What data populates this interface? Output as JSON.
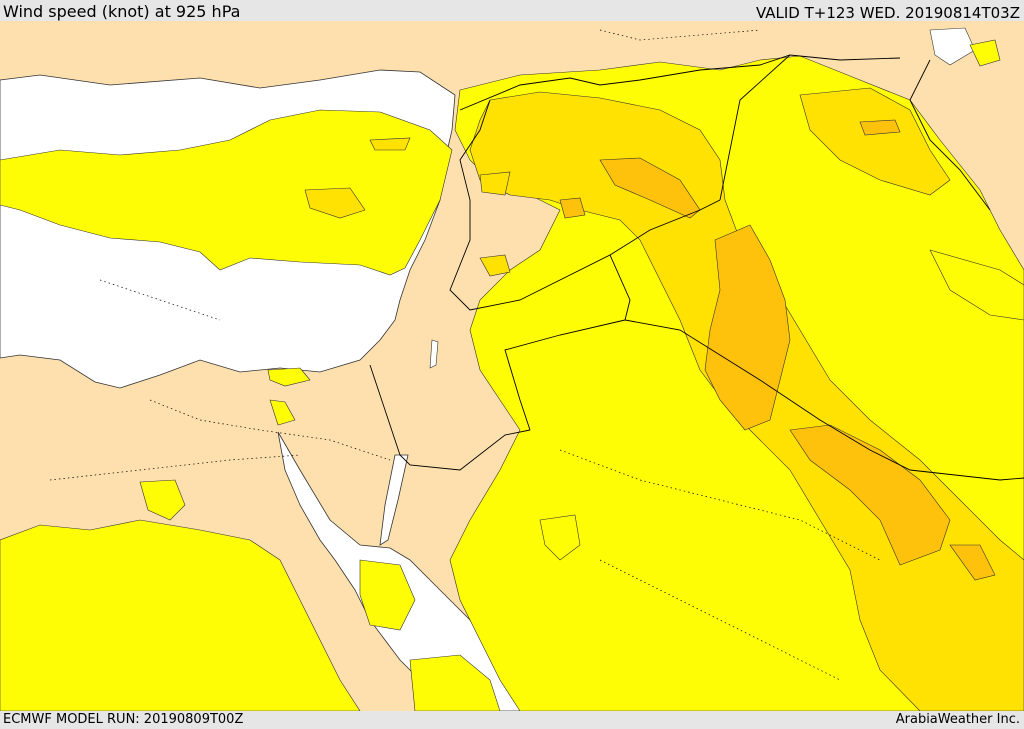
{
  "header": {
    "title": "Wind speed (knot) at 925 hPa",
    "valid_time": "VALID T+123 WED. 20190814T03Z"
  },
  "footer": {
    "model_run": "ECMWF MODEL RUN: 20190809T00Z",
    "credit": "ArabiaWeather Inc."
  },
  "map": {
    "land_color": "#fde0ad",
    "sea_color": "#ffffff",
    "shade_colors": [
      "#fffd05",
      "#ffe102",
      "#ffc20c",
      "#ffad28"
    ],
    "border_color": "#000000"
  }
}
